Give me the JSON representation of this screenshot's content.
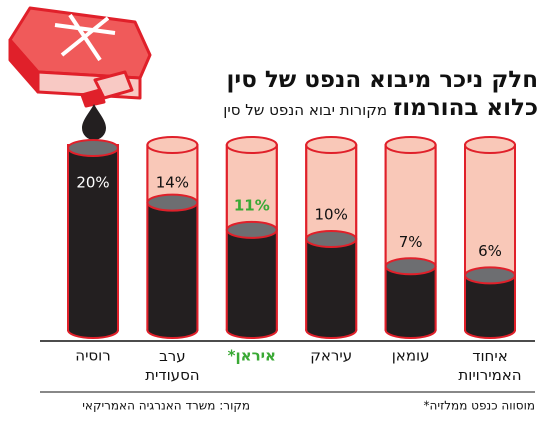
{
  "chart_data": {
    "type": "cylinder",
    "title": "חלק ניכר מיבוא הנפט של סין",
    "title_line2": "כלוא בהורמוז",
    "subtitle": "מקורות יבוא הנפט של סין",
    "categories": [
      "רוסיה",
      "ערב הסעודית",
      "איראן*",
      "עיראק",
      "עומאן",
      "איחוד האמירויות"
    ],
    "values": [
      20,
      14,
      11,
      10,
      7,
      6
    ],
    "value_labels": [
      "20%",
      "14%",
      "11%",
      "10%",
      "7%",
      "6%"
    ],
    "ylim": [
      0,
      20
    ],
    "highlight": "איראן*",
    "highlight_color": "#3aa935",
    "footnote": "*מוסווה כנפט ממלזיה",
    "source": "מקור: משרד האנרגיה האמריקאי"
  }
}
